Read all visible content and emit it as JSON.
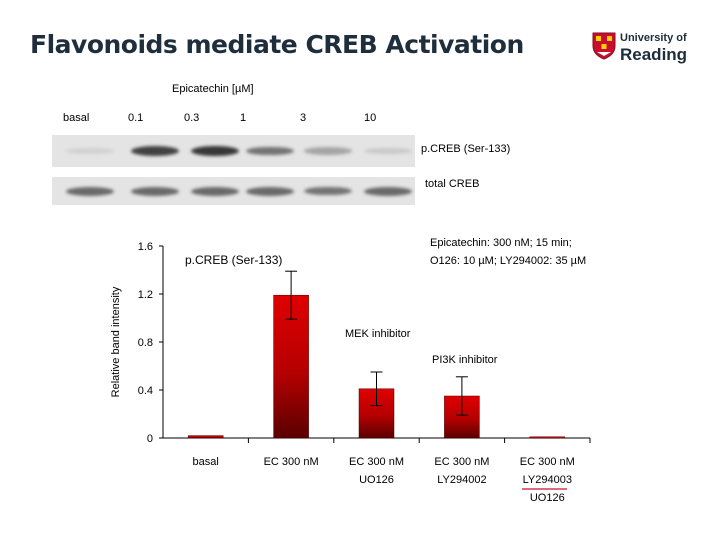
{
  "slide": {
    "title": "Flavonoids mediate CREB Activation",
    "logo": {
      "line1": "University of",
      "line2": "Reading"
    }
  },
  "blot": {
    "treatment_label": "Epicatechin [µM]",
    "lanes": [
      "basal",
      "0.1",
      "0.3",
      "1",
      "3",
      "10"
    ],
    "rows": [
      {
        "label": "p.CREB (Ser-133)",
        "intensities": [
          0.08,
          0.8,
          0.85,
          0.55,
          0.3,
          0.12
        ]
      },
      {
        "label": "total CREB",
        "intensities": [
          0.6,
          0.6,
          0.6,
          0.6,
          0.55,
          0.6
        ]
      }
    ]
  },
  "chart_data": {
    "type": "bar",
    "title": "p.CREB (Ser-133)",
    "ylabel": "Relative band intensity",
    "xlabel": "",
    "ylim": [
      0,
      1.6
    ],
    "yticks": [
      0,
      0.4,
      0.8,
      1.2,
      1.6
    ],
    "grid": false,
    "categories": [
      [
        "basal"
      ],
      [
        "EC 300 nM"
      ],
      [
        "EC 300 nM",
        "UO126"
      ],
      [
        "EC 300 nM",
        "LY294002"
      ],
      [
        "EC 300 nM",
        "LY294003",
        "UO126"
      ]
    ],
    "values": [
      0.02,
      1.19,
      0.41,
      0.35,
      0.01
    ],
    "errors": [
      0,
      0.2,
      0.14,
      0.16,
      0
    ],
    "bar_color": "#e00000",
    "annotations": [
      {
        "text": "Epicatechin: 300 nM; 15 min;",
        "line2": "O126: 10 µM; LY294002: 35 µM"
      },
      {
        "text": "MEK inhibitor"
      },
      {
        "text": "PI3K inhibitor"
      }
    ]
  }
}
